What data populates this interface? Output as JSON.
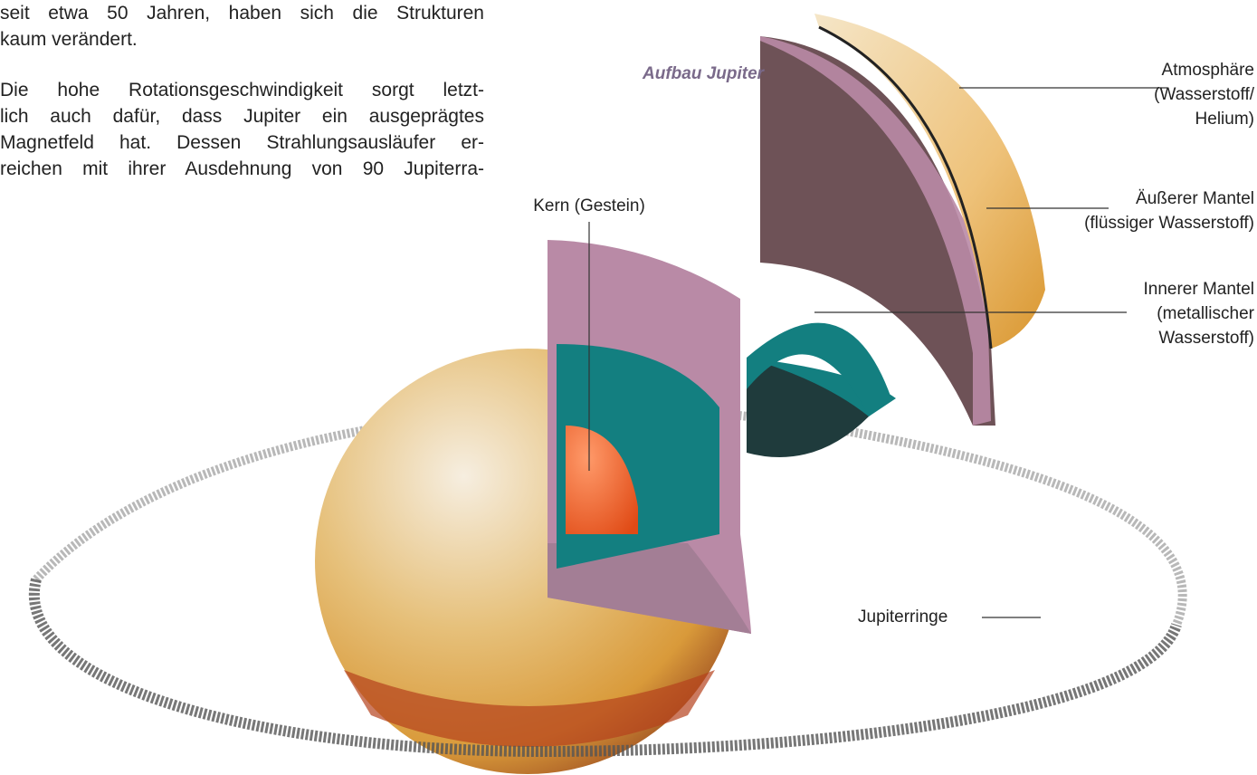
{
  "text": {
    "paragraphs": [
      [
        "seit etwa 50 Jahren, haben sich die Strukturen",
        "kaum verändert."
      ],
      [
        "Die hohe Rotationsgeschwindigkeit sorgt letzt-",
        "lich auch dafür, dass Jupiter ein ausgeprägtes",
        "Magnetfeld hat. Dessen Strahlungsausläufer er-",
        "reichen mit ihrer Ausdehnung von 90 Jupiterra-"
      ]
    ]
  },
  "figure": {
    "title": "Aufbau Jupiter",
    "labels": {
      "atmosphere": [
        "Atmosphäre",
        "(Wasserstoff/",
        "Helium)"
      ],
      "outer_mantle": [
        "Äußerer Mantel",
        "(flüssiger Wasserstoff)"
      ],
      "inner_mantle": [
        "Innerer Mantel",
        "(metallischer",
        "Wasserstoff)"
      ],
      "core": [
        "Kern (Gestein)"
      ],
      "rings": [
        "Jupiterringe"
      ]
    }
  }
}
